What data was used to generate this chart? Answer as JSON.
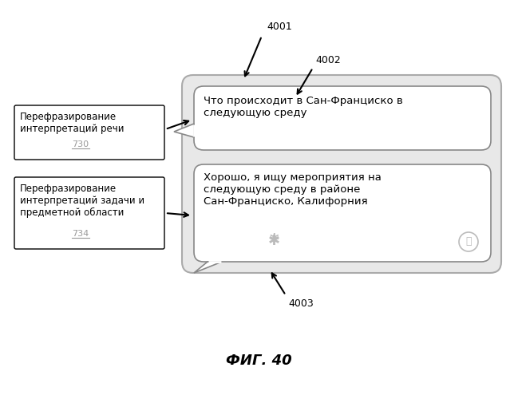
{
  "title": "ФИГ. 40",
  "bg_color": "#ffffff",
  "label_4001": "4001",
  "label_4002": "4002",
  "label_4003": "4003",
  "box1_label": "Перефразирование\nинтерпретаций речи",
  "box1_sublabel": "730",
  "box2_label": "Перефразирование\nинтерпретаций задачи и\nпредметной области",
  "box2_sublabel": "734",
  "bubble1_text": "Что происходит в Сан-Франциско в\nследующую среду",
  "bubble2_text": "Хорошо, я ищу мероприятия на\nследующую среду в районе\nСан-Франциско, Калифорния",
  "outer_box_facecolor": "#e8e8e8",
  "outer_box_edgecolor": "#aaaaaa",
  "bubble_facecolor": "#ffffff",
  "bubble_edgecolor": "#888888",
  "text_color": "#000000",
  "sublabel_color": "#999999"
}
